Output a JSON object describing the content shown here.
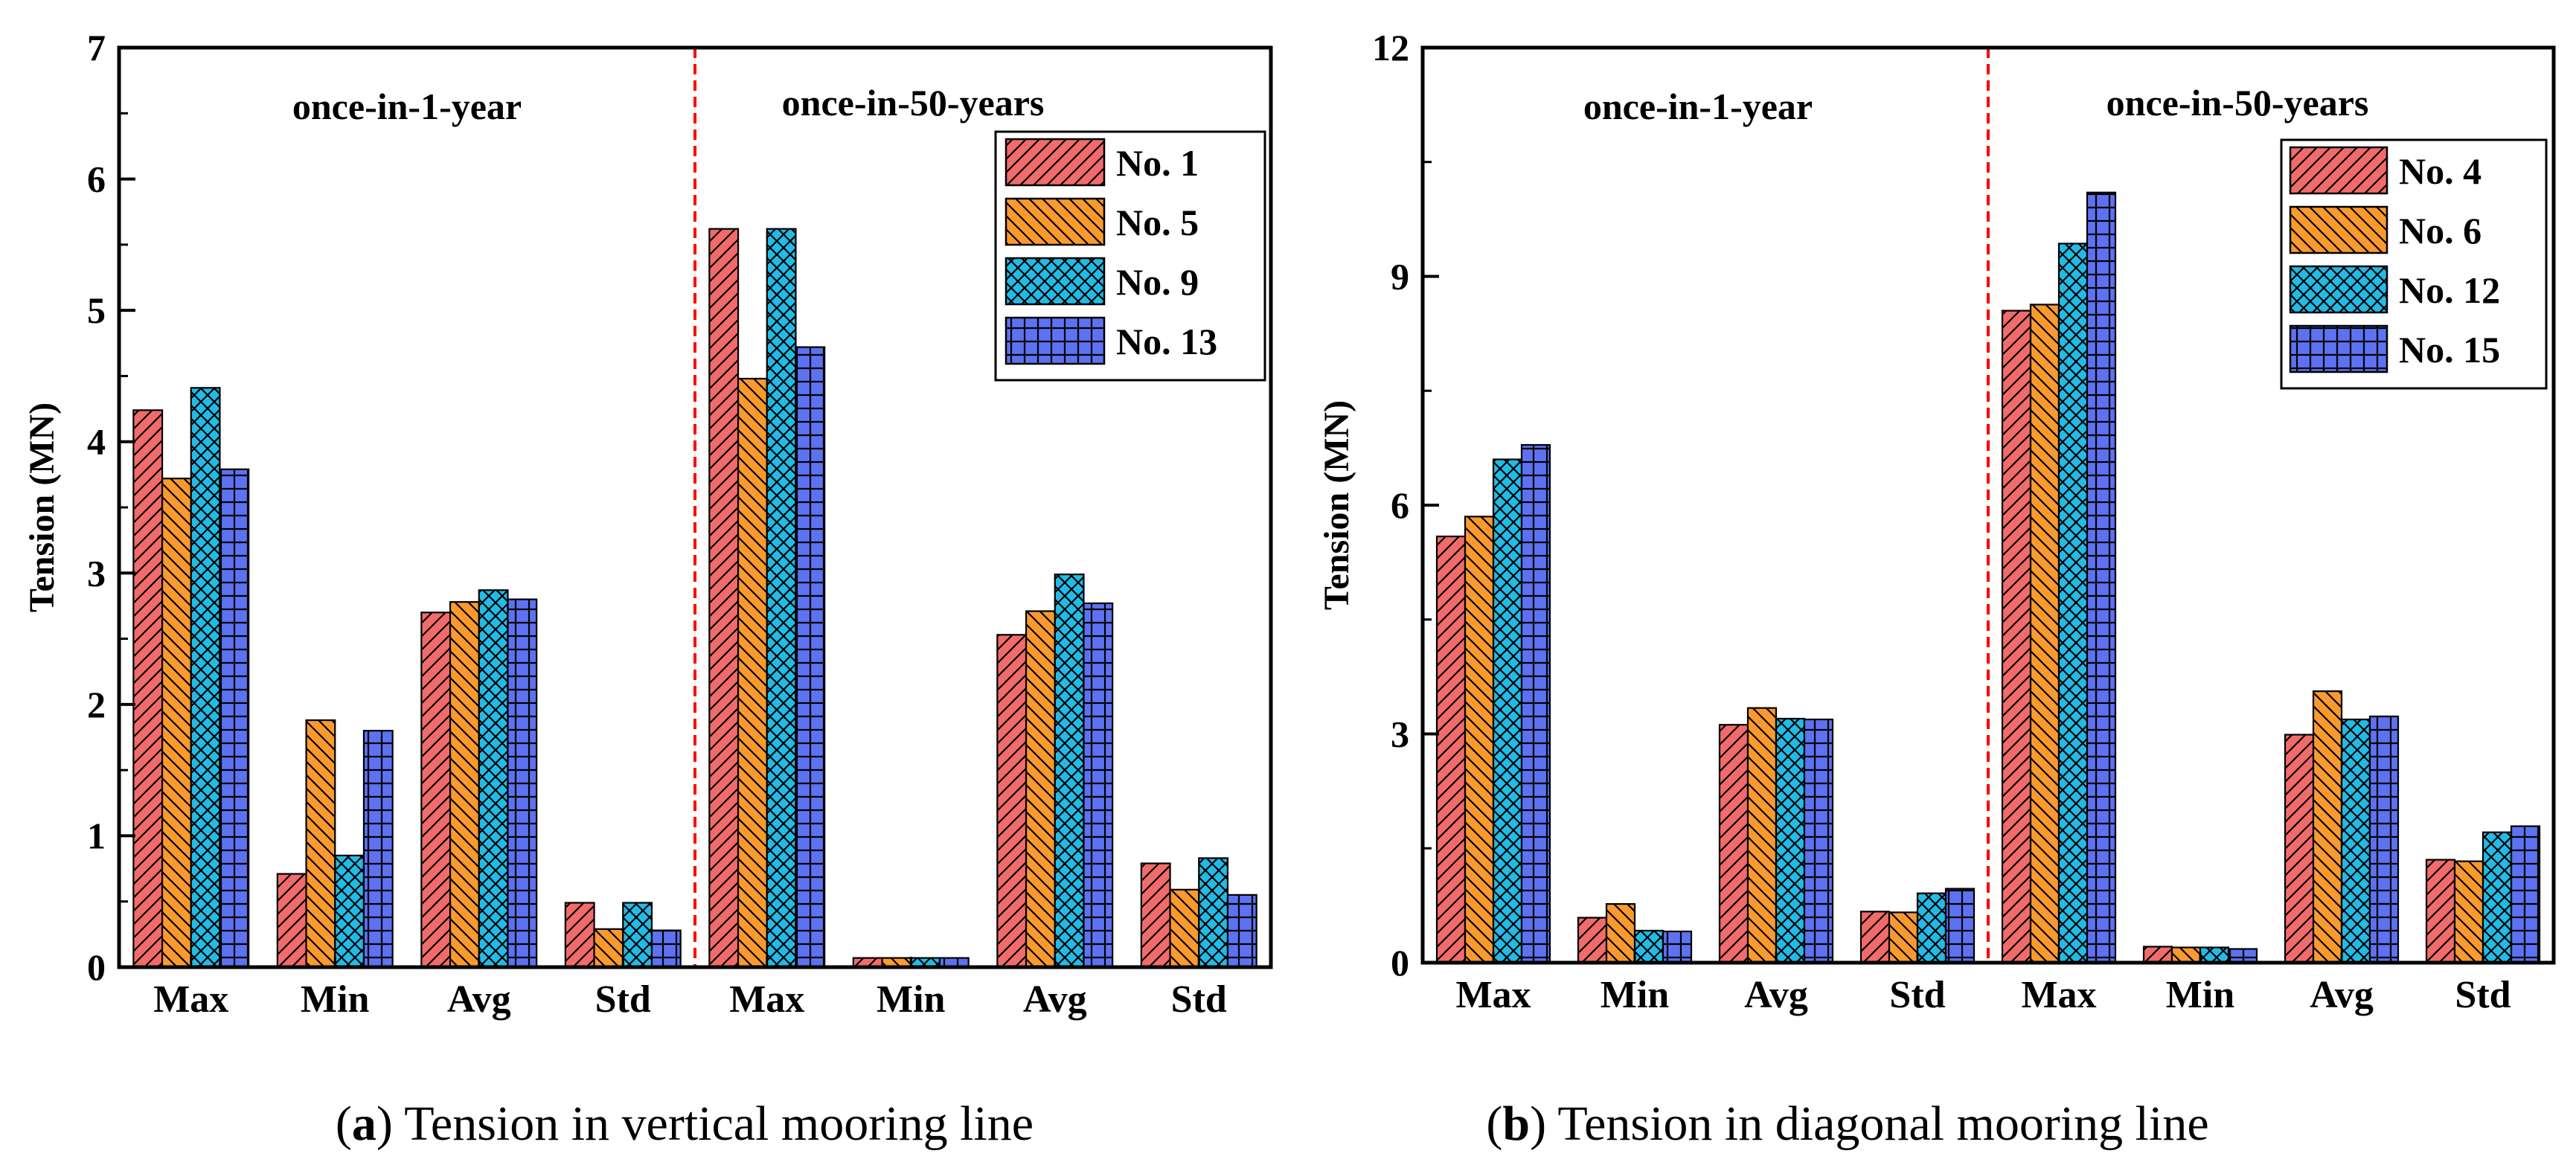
{
  "colors": {
    "red": "#F26B6B",
    "orange": "#FA9A2E",
    "cyan": "#22BBE6",
    "blue": "#5D72F0",
    "divider": "#FF0000"
  },
  "captions": [
    {
      "letter": "a",
      "text": " Tension in vertical mooring line"
    },
    {
      "letter": "b",
      "text": " Tension in diagonal mooring line"
    }
  ],
  "chart_data": [
    {
      "type": "bar",
      "ylabel": "Tension (MN)",
      "xlabel": "",
      "ylim": [
        0,
        7
      ],
      "yticks": [
        "0",
        "1",
        "2",
        "3",
        "4",
        "5",
        "6",
        "7"
      ],
      "groups": [
        "once-in-1-year",
        "once-in-50-years"
      ],
      "categories": [
        "Max",
        "Min",
        "Avg",
        "Std",
        "Max",
        "Min",
        "Avg",
        "Std"
      ],
      "legend_position": "top-right",
      "series": [
        {
          "name": "No. 1",
          "pattern": "hatch-forward",
          "color": "red",
          "values": [
            4.24,
            0.71,
            2.7,
            0.49,
            5.62,
            0.07,
            2.53,
            0.79
          ]
        },
        {
          "name": "No. 5",
          "pattern": "hatch-back",
          "color": "orange",
          "values": [
            3.72,
            1.88,
            2.78,
            0.29,
            4.48,
            0.07,
            2.71,
            0.59
          ]
        },
        {
          "name": "No. 9",
          "pattern": "crosshatch",
          "color": "cyan",
          "values": [
            4.41,
            0.85,
            2.87,
            0.49,
            5.62,
            0.07,
            2.99,
            0.83
          ]
        },
        {
          "name": "No. 13",
          "pattern": "grid",
          "color": "blue",
          "values": [
            3.79,
            1.8,
            2.8,
            0.28,
            4.72,
            0.07,
            2.77,
            0.55
          ]
        }
      ]
    },
    {
      "type": "bar",
      "ylabel": "Tension (MN)",
      "xlabel": "",
      "ylim": [
        0,
        12
      ],
      "yticks": [
        "0",
        "3",
        "6",
        "9",
        "12"
      ],
      "groups": [
        "once-in-1-year",
        "once-in-50-years"
      ],
      "categories": [
        "Max",
        "Min",
        "Avg",
        "Std",
        "Max",
        "Min",
        "Avg",
        "Std"
      ],
      "legend_position": "top-right",
      "series": [
        {
          "name": "No. 4",
          "pattern": "hatch-forward",
          "color": "red",
          "values": [
            5.59,
            0.59,
            3.12,
            0.67,
            8.55,
            0.21,
            2.99,
            1.35
          ]
        },
        {
          "name": "No. 6",
          "pattern": "hatch-back",
          "color": "orange",
          "values": [
            5.85,
            0.77,
            3.34,
            0.66,
            8.63,
            0.2,
            3.56,
            1.33
          ]
        },
        {
          "name": "No. 12",
          "pattern": "crosshatch",
          "color": "cyan",
          "values": [
            6.6,
            0.42,
            3.2,
            0.91,
            9.43,
            0.2,
            3.19,
            1.71
          ]
        },
        {
          "name": "No. 15",
          "pattern": "grid",
          "color": "blue",
          "values": [
            6.79,
            0.41,
            3.19,
            0.97,
            10.1,
            0.18,
            3.23,
            1.79
          ]
        }
      ]
    }
  ]
}
